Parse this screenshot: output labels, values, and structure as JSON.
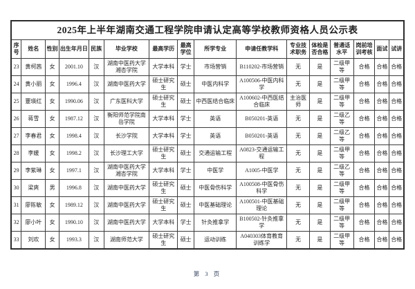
{
  "title": "2025年上半年湖南交通工程学院申请认定高等学校教师资格人员公示表",
  "table": {
    "headers": [
      "序号",
      "姓名",
      "性别",
      "出生年月日",
      "民族",
      "毕业学校",
      "最高学历",
      "最高学位",
      "所学专业",
      "申请任教学科",
      "专业技术职务",
      "体检是否合格",
      "普通话水平",
      "岗前培训考核",
      "面试",
      "试讲"
    ],
    "rows": [
      [
        "23",
        "黄柯茜",
        "女",
        "2001.10",
        "汉",
        "湖南中医药大学湘杏学院",
        "大学本科",
        "学士",
        "市场营销",
        "B110202-市场营销",
        "无",
        "是",
        "二级甲等",
        "合格",
        "合格",
        "合格"
      ],
      [
        "24",
        "黄小丽",
        "女",
        "1996.4",
        "汉",
        "湖南中医药大学",
        "硕士研究生",
        "硕士",
        "中医内科学",
        "A100506-中医内科学",
        "无",
        "是",
        "二级甲等",
        "合格",
        "合格",
        "合格"
      ],
      [
        "25",
        "蹇瑛红",
        "女",
        "1990.06",
        "汉",
        "广东医科大学",
        "硕士研究生",
        "硕士",
        "中西医结合临床",
        "A100602-中西医结合临床",
        "主治医师",
        "是",
        "二级甲等",
        "合格",
        "合格",
        "合格"
      ],
      [
        "26",
        "蒋雪",
        "女",
        "1987.12",
        "汉",
        "衡阳师范学院南岳学院",
        "大学本科",
        "学士",
        "英语",
        "B050201-英语",
        "无",
        "是",
        "二级乙等",
        "合格",
        "合格",
        "合格"
      ],
      [
        "27",
        "李春君",
        "女",
        "1998.4",
        "汉",
        "长沙学院",
        "大学本科",
        "学士",
        "英语",
        "B050201-英语",
        "无",
        "是",
        "二级乙等",
        "合格",
        "合格",
        "合格"
      ],
      [
        "28",
        "李媛",
        "女",
        "1998.2",
        "汉",
        "长沙理工大学",
        "硕士研究生",
        "硕士",
        "交通运输工程",
        "A0823-交通运输工程",
        "无",
        "是",
        "二级甲等",
        "合格",
        "合格",
        "合格"
      ],
      [
        "29",
        "李紫琳",
        "女",
        "1997.1",
        "汉",
        "湖南中医药大学湘杏学院",
        "大学本科",
        "学士",
        "中医学",
        "A1005-中医学",
        "无",
        "是",
        "二级乙等",
        "合格",
        "合格",
        "合格"
      ],
      [
        "30",
        "梁爽",
        "男",
        "1996.8",
        "汉",
        "湖南中医药大学",
        "硕士研究生",
        "硕士",
        "中医骨伤科学",
        "A100508-中医骨伤科学",
        "无",
        "是",
        "二级甲等",
        "合格",
        "合格",
        "合格"
      ],
      [
        "31",
        "廖陈敏",
        "女",
        "1989.12",
        "汉",
        "湖南中医药大学",
        "硕士研究生",
        "硕士",
        "中医基础理论",
        "A100501-中医基础理论",
        "无",
        "是",
        "二级甲等",
        "合格",
        "合格",
        "合格"
      ],
      [
        "32",
        "廖小叶",
        "女",
        "1990.10",
        "汉",
        "湖南中医药大学",
        "大学本科",
        "学士",
        "针灸推拿学",
        "B100502-针灸推拿学",
        "无",
        "是",
        "二级甲等",
        "合格",
        "合格",
        "合格"
      ],
      [
        "33",
        "刘欢",
        "女",
        "1993.3",
        "汉",
        "湖南师范大学",
        "硕士研究生",
        "硕士",
        "运动训练",
        "A040303体育教育训练学",
        "无",
        "是",
        "二级甲等",
        "合格",
        "合格",
        "合格"
      ]
    ]
  },
  "footer": {
    "page_label": "第 3 页"
  }
}
